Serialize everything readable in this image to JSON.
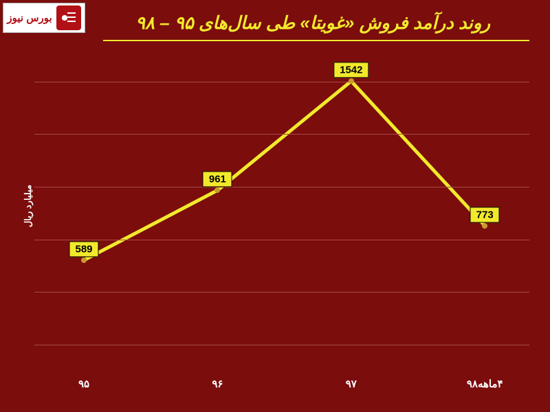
{
  "logo": {
    "text": "بورس نیوز"
  },
  "title": "روند درآمد فروش «غویتا» طی سال‌های ۹۵ – ۹۸",
  "ylabel": "میلیارد ریال",
  "chart": {
    "type": "line",
    "background_color": "#7b0d0d",
    "grid_color": "#a84a4a",
    "line_color": "#f2e92c",
    "line_width": 5,
    "marker_color": "#c89a2e",
    "marker_size": 8,
    "label_bg": "#f2e92c",
    "label_text_color": "#000000",
    "title_color": "#f2e92c",
    "axis_text_color": "#ffffff",
    "title_fontsize": 26,
    "axis_fontsize": 15,
    "ylim": [
      0,
      1700
    ],
    "grid_lines": [
      140,
      420,
      700,
      980,
      1260,
      1540
    ],
    "categories": [
      "۹۵",
      "۹۶",
      "۹۷",
      "۴ماهه۹۸"
    ],
    "x_positions_pct": [
      10,
      37,
      64,
      91
    ],
    "values": [
      589,
      961,
      1542,
      773
    ],
    "value_labels": [
      "589",
      "961",
      "1542",
      "773"
    ]
  }
}
